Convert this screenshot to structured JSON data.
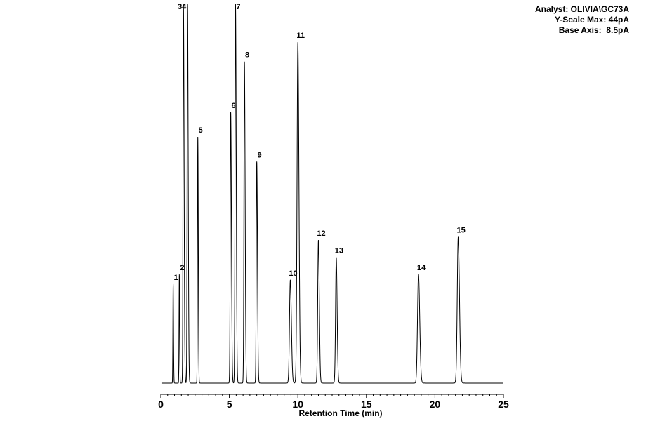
{
  "info": {
    "analyst": "Analyst: OLIVIA\\GC73A",
    "yscale": "Y-Scale Max: 44pA",
    "base": "Base Axis:  8.5pA"
  },
  "chart_data": {
    "type": "line",
    "title": "",
    "xlabel": "Retention Time (min)",
    "ylabel": "",
    "xlim": [
      0,
      25
    ],
    "ylim": [
      8.5,
      44
    ],
    "x_ticks": [
      0,
      5,
      10,
      15,
      20,
      25
    ],
    "grid": false,
    "baseline": 8.7,
    "peaks": [
      {
        "label": "1",
        "rt": 0.9,
        "height": 17.9,
        "width": 0.02,
        "tail": 0.3
      },
      {
        "label": "2",
        "rt": 1.35,
        "height": 18.8,
        "width": 0.02,
        "tail": 0.3
      },
      {
        "label": "34",
        "rt": 1.65,
        "height": 44.0,
        "width": 0.03,
        "tail": 0.6
      },
      {
        "label": "",
        "rt": 1.95,
        "height": 44.0,
        "width": 0.03,
        "tail": 0.6
      },
      {
        "label": "5",
        "rt": 2.7,
        "height": 31.6,
        "width": 0.025,
        "tail": 0.4
      },
      {
        "label": "6",
        "rt": 5.1,
        "height": 33.9,
        "width": 0.035,
        "tail": 0.5
      },
      {
        "label": "7",
        "rt": 5.45,
        "height": 44.0,
        "width": 0.035,
        "tail": 0.5
      },
      {
        "label": "8",
        "rt": 6.1,
        "height": 38.6,
        "width": 0.035,
        "tail": 0.5
      },
      {
        "label": "9",
        "rt": 7.0,
        "height": 29.3,
        "width": 0.035,
        "tail": 0.5
      },
      {
        "label": "10",
        "rt": 9.45,
        "height": 18.3,
        "width": 0.06,
        "tail": 0.3
      },
      {
        "label": "11",
        "rt": 10.0,
        "height": 40.4,
        "width": 0.06,
        "tail": 0.3
      },
      {
        "label": "12",
        "rt": 11.5,
        "height": 22.0,
        "width": 0.05,
        "tail": 0.3
      },
      {
        "label": "13",
        "rt": 12.8,
        "height": 20.4,
        "width": 0.05,
        "tail": 0.3
      },
      {
        "label": "14",
        "rt": 18.8,
        "height": 18.8,
        "width": 0.07,
        "tail": 0.3
      },
      {
        "label": "15",
        "rt": 21.7,
        "height": 22.3,
        "width": 0.07,
        "tail": 0.3
      }
    ]
  }
}
